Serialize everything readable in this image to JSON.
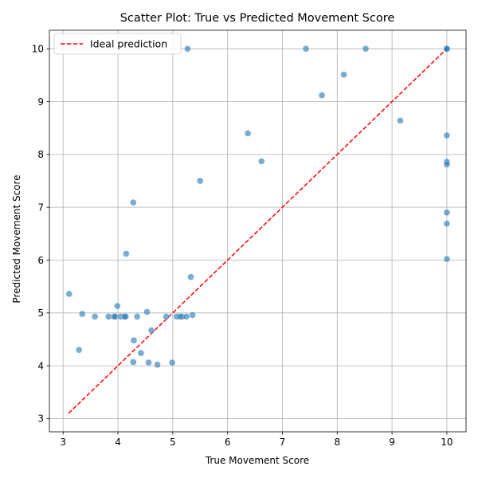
{
  "chart_data": {
    "type": "scatter",
    "title": "Scatter Plot: True vs Predicted Movement Score",
    "xlabel": "True Movement Score",
    "ylabel": "Predicted Movement Score",
    "xlim": [
      2.75,
      10.35
    ],
    "ylim": [
      2.75,
      10.35
    ],
    "xticks": [
      3,
      4,
      5,
      6,
      7,
      8,
      9,
      10
    ],
    "yticks": [
      3,
      4,
      5,
      6,
      7,
      8,
      9,
      10
    ],
    "grid": true,
    "legend": {
      "placement": "top-left",
      "entries": [
        "Ideal prediction"
      ]
    },
    "colors": {
      "points": "#1f77b4",
      "ideal_line": "#ff0000"
    },
    "ideal_line": {
      "from": [
        3.1,
        3.1
      ],
      "to": [
        10,
        10
      ]
    },
    "series": [
      {
        "x": [
          5.27,
          7.43,
          8.52,
          10.0,
          10.0,
          8.12,
          7.72,
          9.15,
          6.37,
          10.0,
          6.62,
          10.0,
          10.0,
          5.5,
          4.28,
          10.0,
          10.0,
          4.15,
          10.0,
          5.33,
          3.11,
          3.99,
          4.53,
          3.35,
          3.58,
          3.83,
          3.93,
          3.95,
          4.05,
          4.12,
          4.14,
          4.35,
          4.88,
          5.07,
          5.13,
          5.17,
          5.25,
          5.36,
          4.61,
          4.29,
          3.29,
          4.42,
          4.28,
          4.56,
          4.72,
          4.99
        ],
        "y": [
          10.0,
          10.0,
          10.0,
          10.0,
          10.0,
          9.51,
          9.12,
          8.64,
          8.4,
          8.36,
          7.87,
          7.86,
          7.81,
          7.5,
          7.09,
          6.9,
          6.69,
          6.12,
          6.02,
          5.68,
          5.36,
          5.13,
          5.02,
          4.98,
          4.93,
          4.93,
          4.93,
          4.93,
          4.93,
          4.93,
          4.93,
          4.93,
          4.93,
          4.93,
          4.93,
          4.93,
          4.93,
          4.96,
          4.67,
          4.48,
          4.3,
          4.24,
          4.07,
          4.06,
          4.02,
          4.06
        ]
      }
    ]
  }
}
